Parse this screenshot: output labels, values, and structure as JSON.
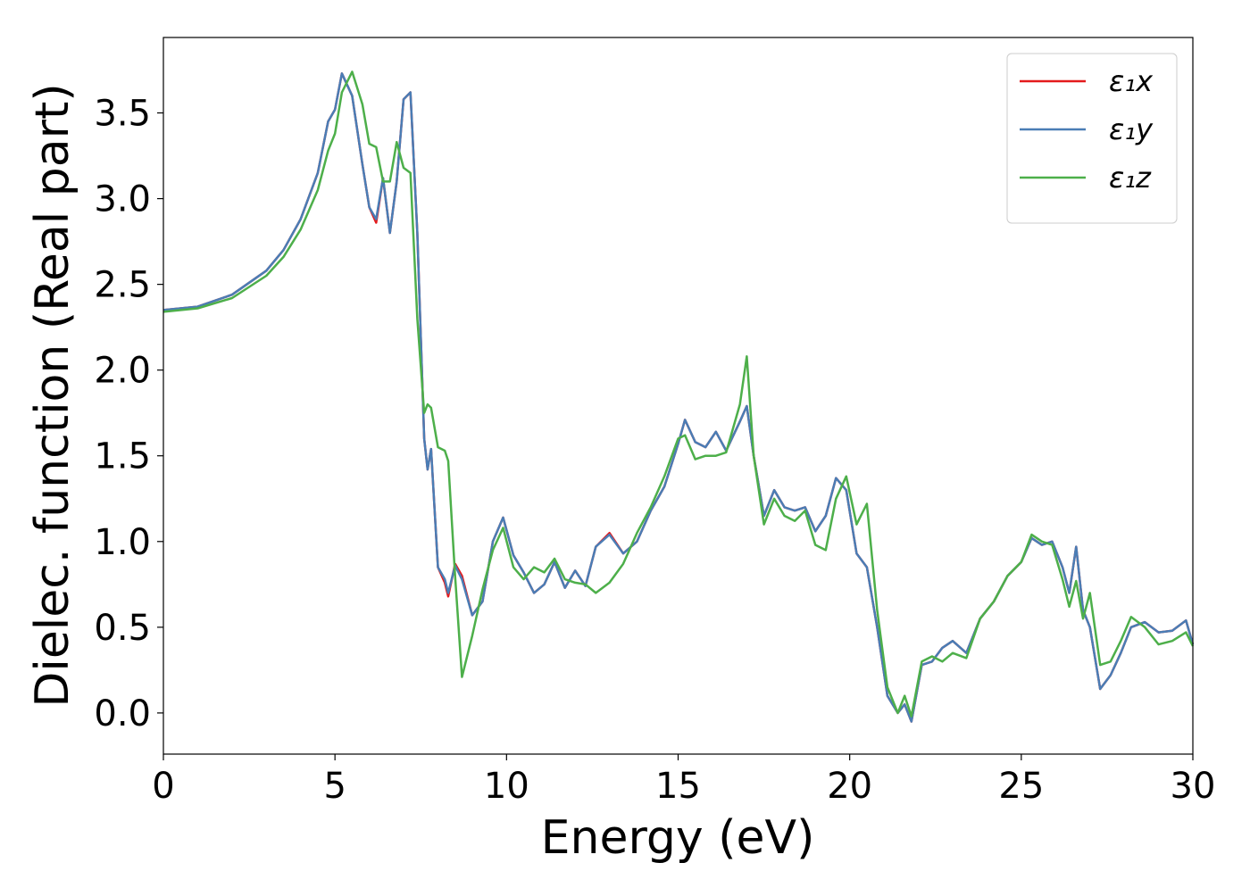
{
  "chart_data": {
    "type": "line",
    "x_label": "Energy (eV)",
    "y_label": "Dielec. function (Real part)",
    "x": [
      0,
      1,
      2,
      3,
      3.5,
      4,
      4.5,
      4.8,
      5.0,
      5.2,
      5.5,
      5.8,
      6.0,
      6.2,
      6.4,
      6.6,
      6.8,
      7.0,
      7.2,
      7.4,
      7.6,
      7.7,
      7.8,
      8.0,
      8.2,
      8.3,
      8.5,
      8.7,
      9.0,
      9.3,
      9.6,
      9.9,
      10.2,
      10.5,
      10.8,
      11.1,
      11.4,
      11.7,
      12.0,
      12.3,
      12.6,
      13.0,
      13.4,
      13.8,
      14.2,
      14.6,
      15.0,
      15.2,
      15.5,
      15.8,
      16.1,
      16.4,
      16.8,
      17.0,
      17.2,
      17.5,
      17.8,
      18.1,
      18.4,
      18.7,
      19.0,
      19.3,
      19.6,
      19.9,
      20.2,
      20.5,
      20.8,
      21.1,
      21.4,
      21.6,
      21.8,
      22.1,
      22.4,
      22.7,
      23.0,
      23.4,
      23.8,
      24.2,
      24.6,
      25.0,
      25.3,
      25.6,
      25.9,
      26.2,
      26.4,
      26.6,
      26.8,
      27.0,
      27.3,
      27.6,
      27.9,
      28.2,
      28.6,
      29.0,
      29.4,
      29.8,
      30.0
    ],
    "series": [
      {
        "name": "ε₁x",
        "color": "#e41a1c",
        "values": [
          2.35,
          2.37,
          2.44,
          2.58,
          2.7,
          2.88,
          3.15,
          3.45,
          3.52,
          3.73,
          3.6,
          3.2,
          2.95,
          2.86,
          3.12,
          2.8,
          3.1,
          3.58,
          3.62,
          2.8,
          1.6,
          1.42,
          1.54,
          0.85,
          0.76,
          0.68,
          0.87,
          0.8,
          0.57,
          0.65,
          1.0,
          1.14,
          0.92,
          0.82,
          0.7,
          0.75,
          0.88,
          0.73,
          0.83,
          0.74,
          0.97,
          1.05,
          0.93,
          1.0,
          1.18,
          1.32,
          1.57,
          1.71,
          1.58,
          1.55,
          1.64,
          1.53,
          1.7,
          1.79,
          1.5,
          1.15,
          1.3,
          1.2,
          1.18,
          1.2,
          1.06,
          1.15,
          1.37,
          1.3,
          0.93,
          0.85,
          0.5,
          0.1,
          0.0,
          0.05,
          -0.05,
          0.28,
          0.3,
          0.38,
          0.42,
          0.35,
          0.55,
          0.65,
          0.8,
          0.88,
          1.02,
          0.98,
          1.0,
          0.85,
          0.7,
          0.97,
          0.6,
          0.5,
          0.14,
          0.22,
          0.35,
          0.5,
          0.53,
          0.47,
          0.48,
          0.54,
          0.4
        ]
      },
      {
        "name": "ε₁y",
        "color": "#4a7db5",
        "values": [
          2.35,
          2.37,
          2.44,
          2.58,
          2.7,
          2.88,
          3.15,
          3.45,
          3.52,
          3.73,
          3.6,
          3.2,
          2.95,
          2.88,
          3.12,
          2.8,
          3.1,
          3.58,
          3.62,
          2.8,
          1.6,
          1.42,
          1.54,
          0.85,
          0.78,
          0.7,
          0.86,
          0.78,
          0.57,
          0.65,
          1.0,
          1.14,
          0.92,
          0.82,
          0.7,
          0.75,
          0.88,
          0.73,
          0.83,
          0.74,
          0.97,
          1.04,
          0.93,
          1.0,
          1.18,
          1.32,
          1.57,
          1.71,
          1.58,
          1.55,
          1.64,
          1.53,
          1.7,
          1.79,
          1.5,
          1.15,
          1.3,
          1.2,
          1.18,
          1.2,
          1.06,
          1.15,
          1.37,
          1.3,
          0.93,
          0.85,
          0.5,
          0.1,
          0.0,
          0.05,
          -0.05,
          0.28,
          0.3,
          0.38,
          0.42,
          0.35,
          0.55,
          0.65,
          0.8,
          0.88,
          1.02,
          0.98,
          1.0,
          0.85,
          0.7,
          0.97,
          0.6,
          0.5,
          0.14,
          0.22,
          0.35,
          0.5,
          0.53,
          0.47,
          0.48,
          0.54,
          0.4
        ]
      },
      {
        "name": "ε₁z",
        "color": "#4daf4a",
        "values": [
          2.34,
          2.36,
          2.42,
          2.55,
          2.66,
          2.82,
          3.05,
          3.28,
          3.38,
          3.62,
          3.74,
          3.55,
          3.32,
          3.3,
          3.1,
          3.1,
          3.33,
          3.18,
          3.15,
          2.3,
          1.75,
          1.8,
          1.78,
          1.55,
          1.53,
          1.47,
          0.8,
          0.21,
          0.45,
          0.72,
          0.95,
          1.08,
          0.85,
          0.78,
          0.85,
          0.82,
          0.9,
          0.78,
          0.76,
          0.75,
          0.7,
          0.76,
          0.87,
          1.05,
          1.2,
          1.38,
          1.6,
          1.62,
          1.48,
          1.5,
          1.5,
          1.52,
          1.8,
          2.08,
          1.5,
          1.1,
          1.25,
          1.15,
          1.12,
          1.18,
          0.98,
          0.95,
          1.25,
          1.38,
          1.1,
          1.22,
          0.6,
          0.15,
          0.0,
          0.1,
          -0.02,
          0.3,
          0.33,
          0.3,
          0.35,
          0.32,
          0.55,
          0.65,
          0.8,
          0.88,
          1.04,
          1.0,
          0.98,
          0.78,
          0.62,
          0.77,
          0.55,
          0.7,
          0.28,
          0.3,
          0.42,
          0.56,
          0.5,
          0.4,
          0.42,
          0.47,
          0.39
        ]
      }
    ],
    "xlim": [
      0,
      30
    ],
    "ylim": [
      -0.24,
      3.94
    ],
    "xticks": [
      0,
      5,
      10,
      15,
      20,
      25,
      30
    ],
    "yticks": [
      {
        "value": 0,
        "label": "0.0"
      },
      0.5,
      {
        "value": 1,
        "label": "1.0"
      },
      1.5,
      {
        "value": 2,
        "label": "2.0"
      },
      2.5,
      {
        "value": 3,
        "label": "3.0"
      },
      3.5
    ],
    "grid": false,
    "legend": "upper right"
  }
}
